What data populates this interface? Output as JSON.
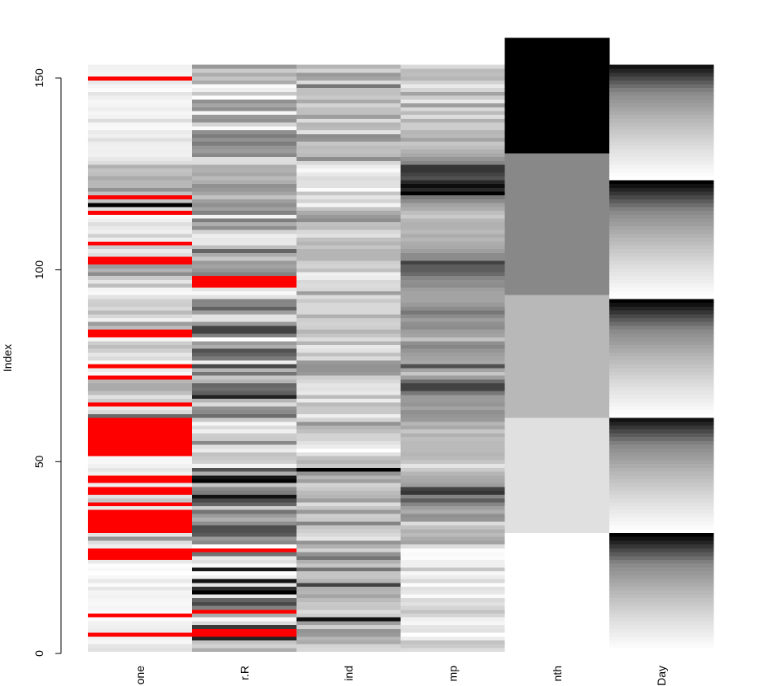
{
  "chart_data": {
    "type": "matrix",
    "ylabel": "Index",
    "ylim": [
      0,
      153.8
    ],
    "yticks": [
      0,
      50,
      100,
      150
    ],
    "missing_color": "#ff0000",
    "variables": [
      {
        "label": "one",
        "values": [
          41,
          36,
          12,
          18,
          null,
          28,
          23,
          19,
          8,
          null,
          7,
          16,
          11,
          14,
          18,
          14,
          34,
          6,
          30,
          11,
          1,
          11,
          4,
          32,
          null,
          null,
          null,
          23,
          45,
          115,
          37,
          null,
          null,
          null,
          null,
          null,
          null,
          29,
          null,
          71,
          39,
          null,
          null,
          23,
          null,
          null,
          21,
          37,
          20,
          12,
          13,
          null,
          null,
          null,
          null,
          null,
          null,
          null,
          null,
          null,
          null,
          135,
          49,
          32,
          null,
          64,
          40,
          77,
          97,
          97,
          85,
          null,
          10,
          27,
          null,
          7,
          48,
          35,
          61,
          79,
          63,
          16,
          null,
          null,
          80,
          108,
          20,
          52,
          82,
          50,
          64,
          59,
          39,
          9,
          16,
          78,
          35,
          66,
          122,
          89,
          110,
          null,
          null,
          44,
          28,
          65,
          null,
          22,
          59,
          23,
          31,
          44,
          21,
          9,
          null,
          45,
          168,
          73,
          null,
          76,
          118,
          84,
          85,
          96,
          78,
          73,
          91,
          47,
          32,
          20,
          23,
          21,
          24,
          44,
          21,
          28,
          9,
          13,
          46,
          18,
          13,
          24,
          16,
          13,
          23,
          36,
          7,
          14,
          30,
          null,
          14,
          18,
          20
        ]
      },
      {
        "label": "r.R",
        "values": [
          190,
          118,
          149,
          313,
          null,
          null,
          299,
          99,
          19,
          194,
          null,
          256,
          290,
          274,
          65,
          334,
          307,
          78,
          322,
          44,
          8,
          320,
          25,
          92,
          66,
          266,
          null,
          13,
          252,
          223,
          279,
          286,
          287,
          242,
          186,
          220,
          264,
          127,
          273,
          291,
          323,
          259,
          250,
          148,
          332,
          322,
          191,
          284,
          37,
          120,
          137,
          150,
          59,
          91,
          250,
          135,
          127,
          47,
          98,
          31,
          138,
          269,
          248,
          236,
          101,
          175,
          314,
          276,
          267,
          272,
          175,
          139,
          264,
          175,
          291,
          48,
          260,
          274,
          285,
          187,
          220,
          7,
          258,
          295,
          294,
          223,
          81,
          82,
          213,
          275,
          253,
          254,
          83,
          24,
          77,
          null,
          null,
          null,
          255,
          229,
          207,
          222,
          137,
          192,
          273,
          157,
          64,
          71,
          51,
          115,
          244,
          190,
          259,
          36,
          255,
          212,
          238,
          215,
          153,
          203,
          225,
          237,
          188,
          167,
          197,
          183,
          189,
          95,
          92,
          252,
          220,
          230,
          259,
          236,
          259,
          238,
          24,
          112,
          237,
          224,
          27,
          238,
          201,
          238,
          14,
          139,
          49,
          20,
          193,
          145,
          191,
          131,
          223
        ]
      },
      {
        "label": "ind",
        "values": [
          7.4,
          8,
          12.6,
          11.5,
          14.3,
          14.9,
          8.6,
          13.8,
          20.1,
          8.6,
          6.9,
          9.7,
          9.2,
          10.9,
          13.2,
          11.5,
          12,
          18.4,
          11.5,
          9.7,
          9.7,
          16.6,
          9.7,
          12,
          16.6,
          14.9,
          8,
          12,
          14.9,
          5.7,
          7.4,
          8.6,
          9.7,
          16.1,
          9.2,
          8.6,
          14.3,
          9.7,
          6.9,
          13.8,
          11.5,
          10.9,
          9.2,
          8,
          13.8,
          11.5,
          14.9,
          20.7,
          9.2,
          11.5,
          10.3,
          6.3,
          1.7,
          4.6,
          6.3,
          8,
          8,
          10.3,
          11.5,
          14.9,
          8,
          4.1,
          9.2,
          9.2,
          10.9,
          4.6,
          10.9,
          5.1,
          6.3,
          5.7,
          7.4,
          8.6,
          14.3,
          14.9,
          14.9,
          14.3,
          6.9,
          10.3,
          6.3,
          5.1,
          11.5,
          6.9,
          9.7,
          11.5,
          8.6,
          8,
          8.6,
          12,
          7.4,
          7.4,
          7.4,
          9.2,
          6.9,
          13.8,
          7.4,
          6.9,
          7.4,
          4.6,
          4,
          10.3,
          8,
          8.6,
          11.5,
          11.5,
          11.5,
          9.7,
          11.5,
          10.3,
          6.3,
          7.4,
          10.9,
          10.3,
          15.5,
          14.3,
          12.6,
          9.7,
          3.4,
          8,
          5.7,
          9.7,
          2.3,
          6.3,
          6.3,
          6.9,
          5.1,
          2.8,
          4.6,
          7.4,
          15.5,
          10.9,
          10.3,
          10.9,
          9.7,
          14.9,
          15.5,
          6.3,
          10.9,
          11.5,
          6.9,
          13.8,
          10.3,
          10.3,
          8,
          12.6,
          9.2,
          10.3,
          10.3,
          16.6,
          6.9,
          13.2,
          14.3,
          8,
          11.5
        ]
      },
      {
        "label": "mp",
        "values": [
          67,
          72,
          74,
          62,
          56,
          66,
          65,
          59,
          61,
          69,
          74,
          69,
          66,
          68,
          58,
          64,
          66,
          57,
          68,
          62,
          59,
          73,
          61,
          61,
          57,
          58,
          57,
          67,
          81,
          79,
          76,
          78,
          74,
          67,
          84,
          85,
          79,
          82,
          87,
          90,
          87,
          93,
          92,
          82,
          80,
          79,
          77,
          72,
          65,
          73,
          76,
          77,
          76,
          76,
          76,
          75,
          78,
          73,
          80,
          77,
          83,
          84,
          85,
          81,
          84,
          83,
          83,
          88,
          92,
          92,
          89,
          82,
          73,
          81,
          91,
          80,
          81,
          82,
          84,
          87,
          85,
          74,
          81,
          82,
          86,
          85,
          82,
          86,
          88,
          86,
          83,
          81,
          81,
          81,
          82,
          86,
          85,
          87,
          89,
          90,
          90,
          92,
          86,
          86,
          82,
          80,
          79,
          77,
          79,
          76,
          78,
          78,
          77,
          72,
          75,
          79,
          81,
          86,
          88,
          97,
          94,
          96,
          94,
          91,
          92,
          93,
          93,
          87,
          84,
          80,
          78,
          75,
          73,
          81,
          76,
          77,
          71,
          71,
          78,
          67,
          76,
          68,
          82,
          64,
          71,
          81,
          69,
          63,
          70,
          77,
          75,
          76,
          68
        ]
      },
      {
        "label": "nth",
        "values": [
          5,
          5,
          5,
          5,
          5,
          5,
          5,
          5,
          5,
          5,
          5,
          5,
          5,
          5,
          5,
          5,
          5,
          5,
          5,
          5,
          5,
          5,
          5,
          5,
          5,
          5,
          5,
          5,
          5,
          5,
          5,
          6,
          6,
          6,
          6,
          6,
          6,
          6,
          6,
          6,
          6,
          6,
          6,
          6,
          6,
          6,
          6,
          6,
          6,
          6,
          6,
          6,
          6,
          6,
          6,
          6,
          6,
          6,
          6,
          6,
          6,
          7,
          7,
          7,
          7,
          7,
          7,
          7,
          7,
          7,
          7,
          7,
          7,
          7,
          7,
          7,
          7,
          7,
          7,
          7,
          7,
          7,
          7,
          7,
          7,
          7,
          7,
          7,
          7,
          7,
          7,
          7,
          7,
          8,
          8,
          8,
          8,
          8,
          8,
          8,
          8,
          8,
          8,
          8,
          8,
          8,
          8,
          8,
          8,
          8,
          8,
          8,
          8,
          8,
          8,
          8,
          8,
          8,
          8,
          8,
          8,
          8,
          8,
          8,
          8,
          8,
          8,
          8,
          8,
          8,
          9,
          9,
          9,
          9,
          9,
          9,
          9,
          9,
          9,
          9,
          9,
          9,
          9,
          9,
          9,
          9,
          9,
          9,
          9,
          9,
          9,
          9,
          9,
          9,
          9,
          9,
          9,
          9,
          9,
          9
        ]
      },
      {
        "label": "Day",
        "values": [
          1,
          2,
          3,
          4,
          5,
          6,
          7,
          8,
          9,
          10,
          11,
          12,
          13,
          14,
          15,
          16,
          17,
          18,
          19,
          20,
          21,
          22,
          23,
          24,
          25,
          26,
          27,
          28,
          29,
          30,
          31,
          1,
          2,
          3,
          4,
          5,
          6,
          7,
          8,
          9,
          10,
          11,
          12,
          13,
          14,
          15,
          16,
          17,
          18,
          19,
          20,
          21,
          22,
          23,
          24,
          25,
          26,
          27,
          28,
          29,
          30,
          1,
          2,
          3,
          4,
          5,
          6,
          7,
          8,
          9,
          10,
          11,
          12,
          13,
          14,
          15,
          16,
          17,
          18,
          19,
          20,
          21,
          22,
          23,
          24,
          25,
          26,
          27,
          28,
          29,
          30,
          31,
          1,
          2,
          3,
          4,
          5,
          6,
          7,
          8,
          9,
          10,
          11,
          12,
          13,
          14,
          15,
          16,
          17,
          18,
          19,
          20,
          21,
          22,
          23,
          24,
          25,
          26,
          27,
          28,
          29,
          30,
          31,
          1,
          2,
          3,
          4,
          5,
          6,
          7,
          8,
          9,
          10,
          11,
          12,
          13,
          14,
          15,
          16,
          17,
          18,
          19,
          20,
          21,
          22,
          23,
          24,
          25,
          26,
          27,
          28,
          29,
          30
        ]
      }
    ]
  }
}
